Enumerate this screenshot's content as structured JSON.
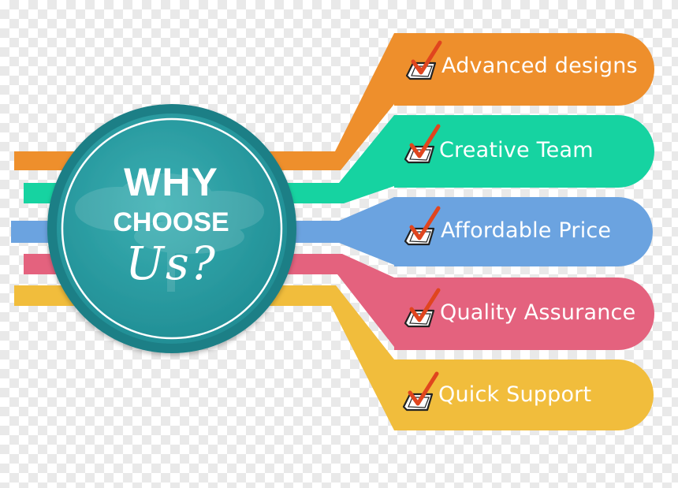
{
  "center": {
    "line1": "WHY",
    "line2": "CHOOSE",
    "line3": "Us?"
  },
  "items": [
    {
      "label": "Advanced designs",
      "color": "#EE8F2C",
      "icon": "checkbox-check-icon"
    },
    {
      "label": "Creative Team",
      "color": "#16D3A1",
      "icon": "checkbox-check-icon"
    },
    {
      "label": "Affordable Price",
      "color": "#6BA3E0",
      "icon": "checkbox-check-icon"
    },
    {
      "label": "Quality Assurance",
      "color": "#E4627E",
      "icon": "checkbox-check-icon"
    },
    {
      "label": "Quick Support",
      "color": "#F1BD3C",
      "icon": "checkbox-check-icon"
    }
  ],
  "colors": {
    "circle_fill": "#2A9A9F",
    "circle_ring": "#1E7F86",
    "check": "#E0451E"
  }
}
